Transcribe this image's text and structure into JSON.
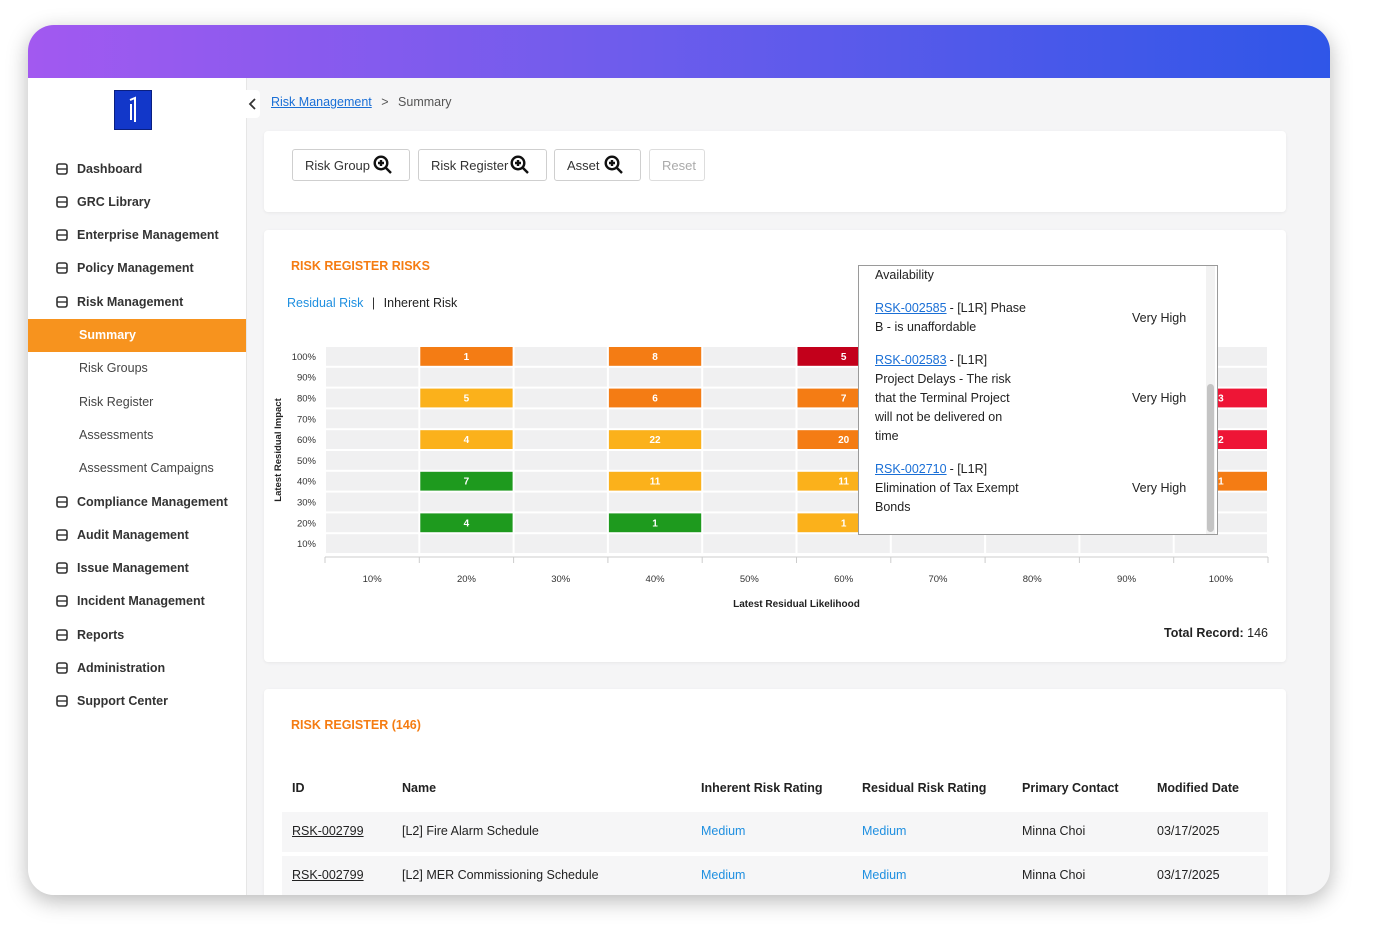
{
  "sidebar": {
    "menu": [
      {
        "label": "Dashboard"
      },
      {
        "label": "GRC Library"
      },
      {
        "label": "Enterprise Management"
      },
      {
        "label": "Policy Management"
      },
      {
        "label": "Risk Management",
        "children": [
          {
            "label": "Summary",
            "active": true
          },
          {
            "label": "Risk Groups"
          },
          {
            "label": "Risk Register"
          },
          {
            "label": "Assessments"
          },
          {
            "label": "Assessment Campaigns"
          }
        ]
      },
      {
        "label": "Compliance Management"
      },
      {
        "label": "Audit Management"
      },
      {
        "label": "Issue Management"
      },
      {
        "label": "Incident Management"
      },
      {
        "label": "Reports"
      },
      {
        "label": "Administration"
      },
      {
        "label": "Support Center"
      }
    ]
  },
  "breadcrumb": {
    "link": "Risk Management",
    "separator": ">",
    "current": "Summary"
  },
  "filters": {
    "buttons": [
      "Risk Group",
      "Risk Register",
      "Asset"
    ],
    "reset": "Reset"
  },
  "risk_card": {
    "title": "RISK REGISTER RISKS",
    "tabs": [
      "Residual Risk",
      "Inherent Risk"
    ],
    "tab_separator": "|",
    "heatmap": {
      "type": "heatmap",
      "x_label": "Latest Residual Likelihood",
      "y_label": "Latest Residual Impact",
      "x_categories": [
        "10%",
        "20%",
        "30%",
        "40%",
        "50%",
        "60%",
        "70%",
        "80%",
        "90%",
        "100%"
      ],
      "y_categories": [
        "100%",
        "90%",
        "80%",
        "70%",
        "60%",
        "50%",
        "40%",
        "30%",
        "20%",
        "10%"
      ],
      "cells": [
        {
          "x": "20%",
          "y": "100%",
          "value": 1,
          "color": "#f47c14"
        },
        {
          "x": "40%",
          "y": "100%",
          "value": 8,
          "color": "#f47c14"
        },
        {
          "x": "60%",
          "y": "100%",
          "value": 5,
          "color": "#c3001b"
        },
        {
          "x": "20%",
          "y": "80%",
          "value": 5,
          "color": "#fbb11b"
        },
        {
          "x": "40%",
          "y": "80%",
          "value": 6,
          "color": "#f47c14"
        },
        {
          "x": "60%",
          "y": "80%",
          "value": 7,
          "color": "#f47c14"
        },
        {
          "x": "100%",
          "y": "80%",
          "value": 3,
          "color": "#ee1536"
        },
        {
          "x": "20%",
          "y": "60%",
          "value": 4,
          "color": "#fbb11b"
        },
        {
          "x": "40%",
          "y": "60%",
          "value": 22,
          "color": "#fbb11b"
        },
        {
          "x": "60%",
          "y": "60%",
          "value": 20,
          "color": "#f47c14"
        },
        {
          "x": "100%",
          "y": "60%",
          "value": 2,
          "color": "#ee1536"
        },
        {
          "x": "20%",
          "y": "40%",
          "value": 7,
          "color": "#1e9a1e"
        },
        {
          "x": "40%",
          "y": "40%",
          "value": 11,
          "color": "#fbb11b"
        },
        {
          "x": "60%",
          "y": "40%",
          "value": 11,
          "color": "#fbb11b"
        },
        {
          "x": "100%",
          "y": "40%",
          "value": 1,
          "color": "#f47c14"
        },
        {
          "x": "20%",
          "y": "20%",
          "value": 4,
          "color": "#1e9a1e"
        },
        {
          "x": "40%",
          "y": "20%",
          "value": 1,
          "color": "#1e9a1e"
        },
        {
          "x": "60%",
          "y": "20%",
          "value": 1,
          "color": "#fbb11b"
        }
      ]
    },
    "total_label": "Total Record:",
    "total": 146,
    "popup": {
      "partial_text": "Availability",
      "entries": [
        {
          "id": "RSK-002585",
          "text": "- [L1R] Phase B - is unaffordable",
          "rating": "Very High"
        },
        {
          "id": "RSK-002583",
          "text": "- [L1R] Project Delays - The risk that the Terminal Project will not be delivered on time",
          "rating": "Very High"
        },
        {
          "id": "RSK-002710",
          "text": "- [L1R] Elimination of Tax Exempt Bonds",
          "rating": "Very High"
        }
      ]
    }
  },
  "table": {
    "title": "RISK REGISTER (146)",
    "columns": [
      "ID",
      "Name",
      "Inherent Risk Rating",
      "Residual Risk Rating",
      "Primary Contact",
      "Modified Date"
    ],
    "rows": [
      [
        "RSK-002799",
        "[L2] Fire Alarm Schedule",
        "Medium",
        "Medium",
        "Minna Choi",
        "03/17/2025"
      ],
      [
        "RSK-002799",
        "[L2] MER Commissioning Schedule",
        "Medium",
        "Medium",
        "Minna Choi",
        "03/17/2025"
      ]
    ]
  }
}
